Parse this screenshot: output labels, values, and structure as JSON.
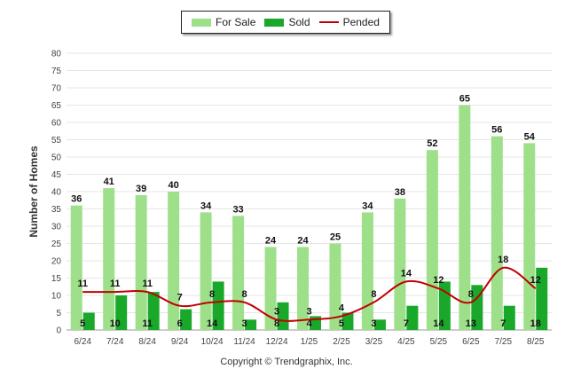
{
  "chart_data": {
    "type": "bar",
    "categories": [
      "6/24",
      "7/24",
      "8/24",
      "9/24",
      "10/24",
      "11/24",
      "12/24",
      "1/25",
      "2/25",
      "3/25",
      "4/25",
      "5/25",
      "6/25",
      "7/25",
      "8/25"
    ],
    "series": [
      {
        "name": "For Sale",
        "kind": "bar",
        "color": "#9ee08a",
        "values": [
          36,
          41,
          39,
          40,
          34,
          33,
          24,
          24,
          25,
          34,
          38,
          52,
          65,
          56,
          54
        ]
      },
      {
        "name": "Sold",
        "kind": "bar",
        "color": "#1aa82a",
        "values": [
          5,
          10,
          11,
          6,
          14,
          3,
          8,
          4,
          5,
          3,
          7,
          14,
          13,
          7,
          18
        ]
      },
      {
        "name": "Pended",
        "kind": "line",
        "color": "#c00000",
        "values": [
          11,
          11,
          11,
          7,
          8,
          8,
          3,
          3,
          4,
          8,
          14,
          12,
          8,
          18,
          12
        ]
      }
    ],
    "ylabel": "Number of Homes",
    "xlabel": "",
    "ylim": [
      0,
      80
    ],
    "yticks": [
      0,
      5,
      10,
      15,
      20,
      25,
      30,
      35,
      40,
      45,
      50,
      55,
      60,
      65,
      70,
      75,
      80
    ],
    "grid": true,
    "legend_position": "top-center"
  },
  "copyright": "Copyright © Trendgraphix, Inc."
}
